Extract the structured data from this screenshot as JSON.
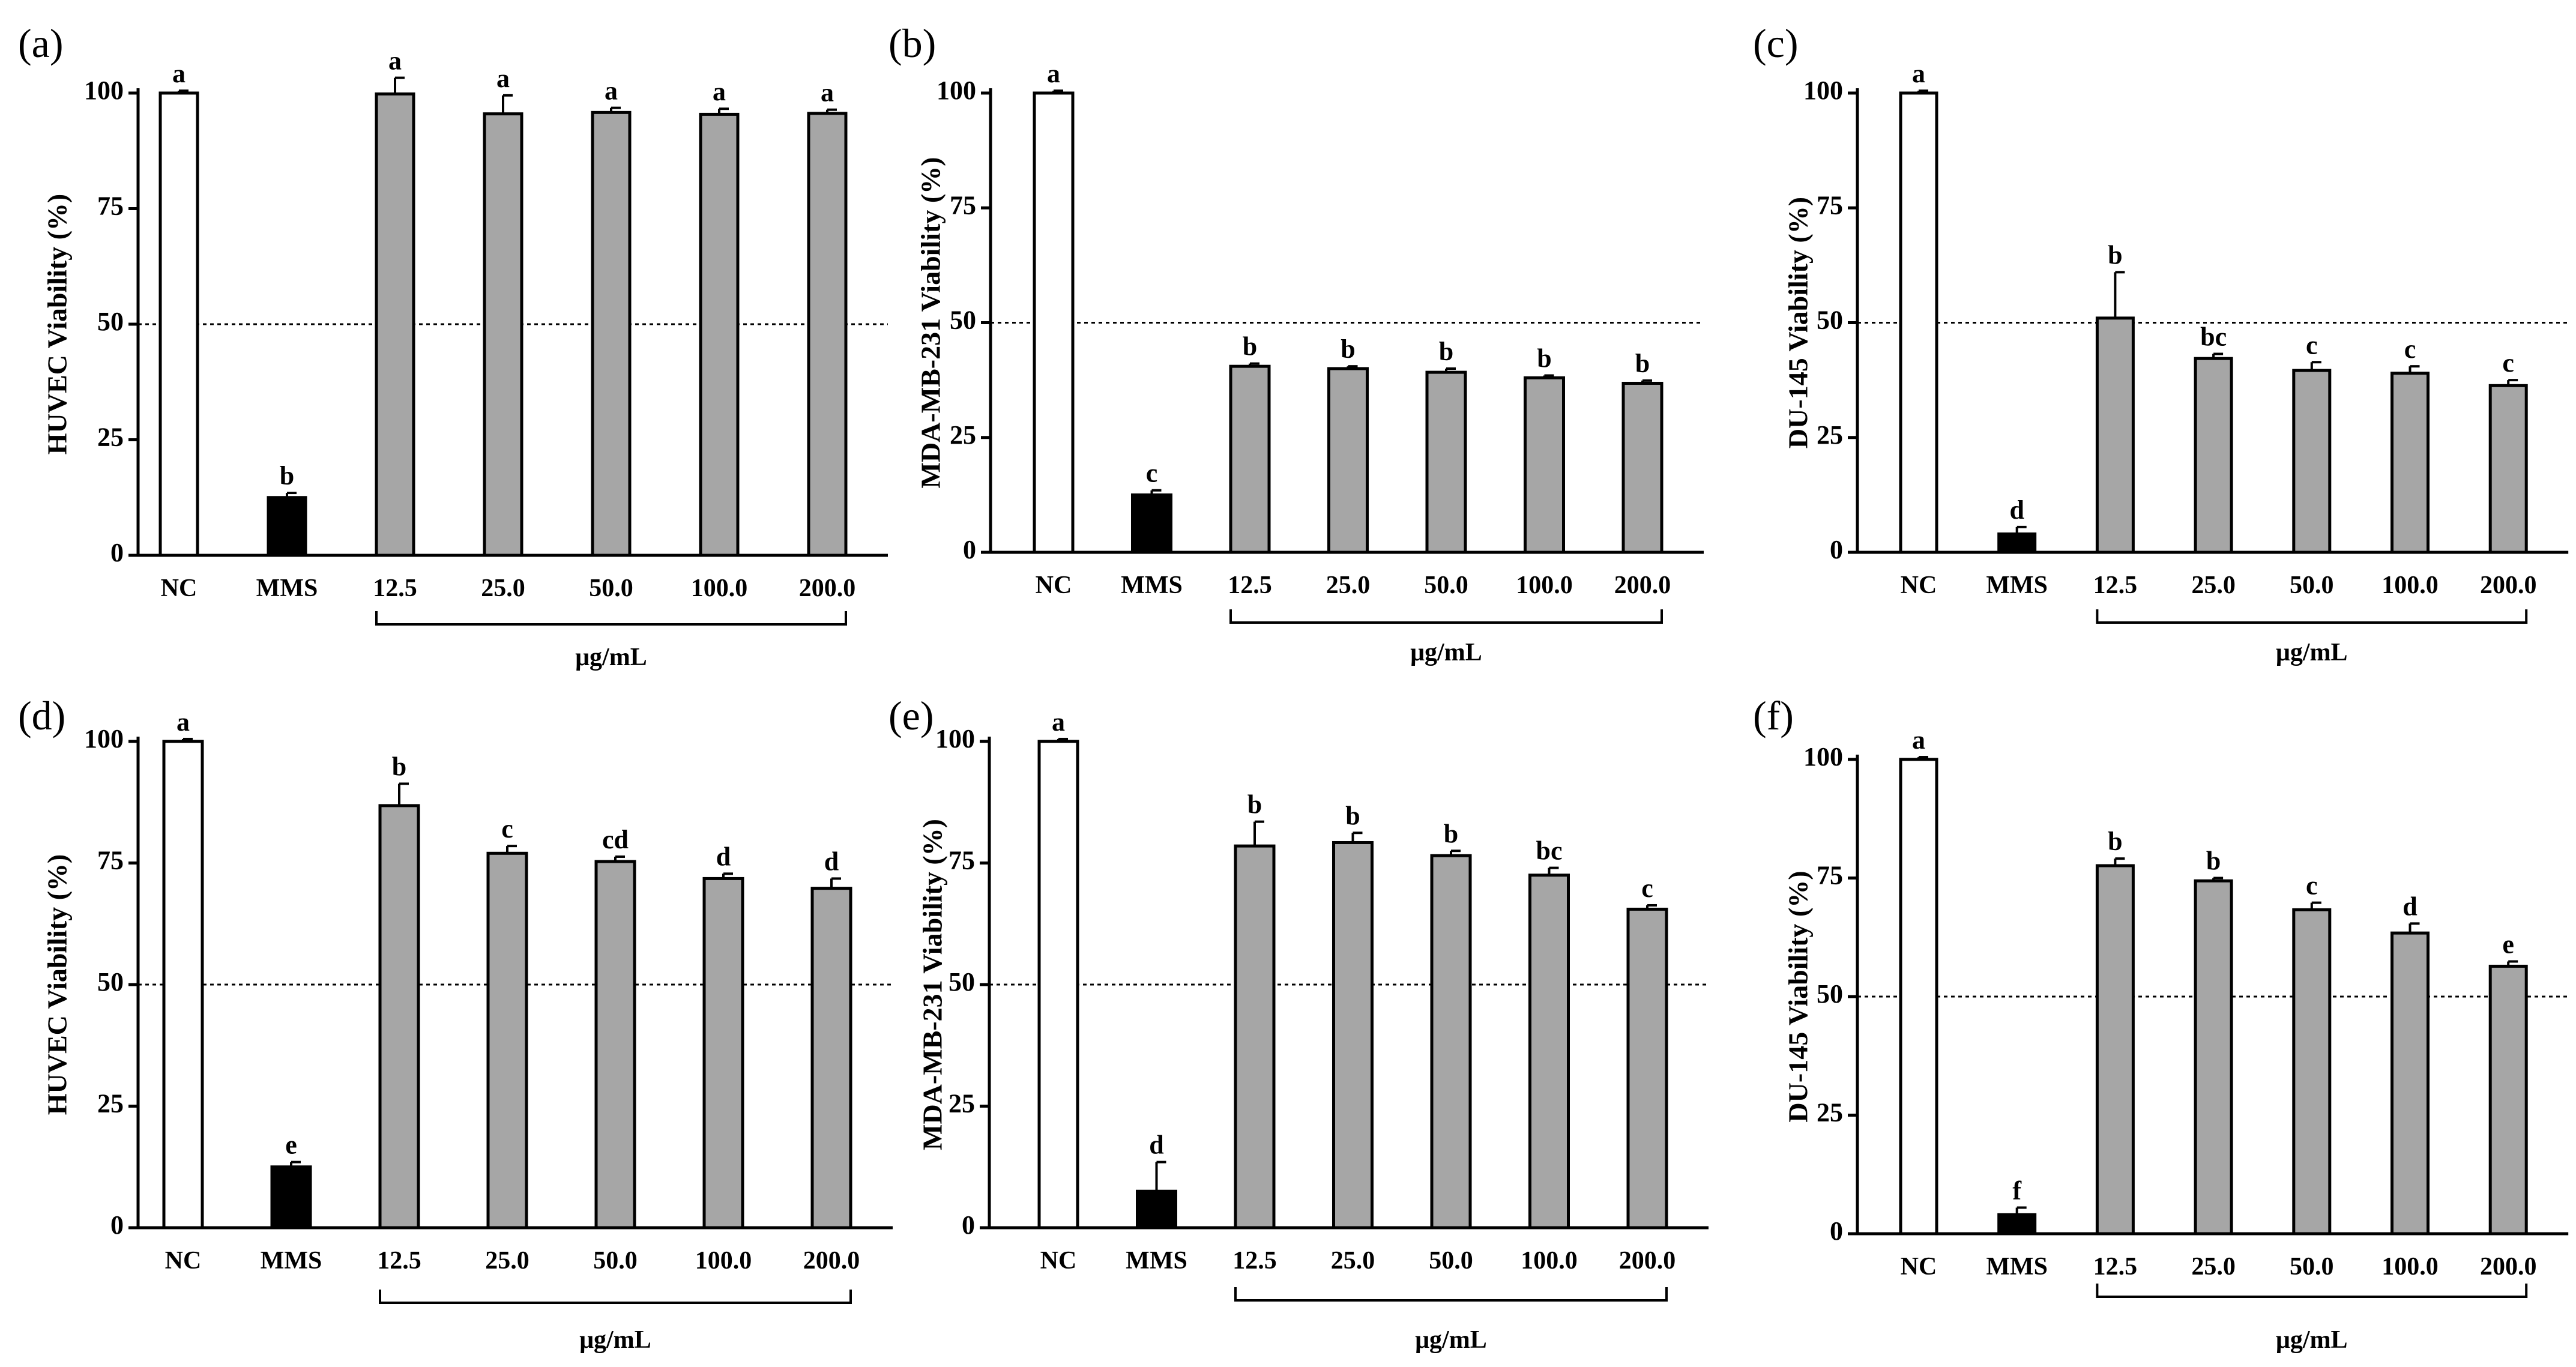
{
  "colors": {
    "NC": "#ffffff",
    "MMS": "#000000",
    "treatment": "#a6a6a6",
    "axis": "#000000"
  },
  "chart_data": [
    {
      "panel": "(a)",
      "type": "bar",
      "ylabel": "HUVEC Viability (%)",
      "categories": [
        "NC",
        "MMS",
        "12.5",
        "25.0",
        "50.0",
        "100.0",
        "200.0"
      ],
      "values": [
        100,
        12.5,
        99.8,
        95.5,
        95.8,
        95.4,
        95.6
      ],
      "errors": [
        0.5,
        1.0,
        3.5,
        4.0,
        1.0,
        1.2,
        0.8
      ],
      "significance": [
        "a",
        "b",
        "a",
        "a",
        "a",
        "a",
        "a"
      ],
      "bar_fill": [
        "NC",
        "MMS",
        "treatment",
        "treatment",
        "treatment",
        "treatment",
        "treatment"
      ],
      "group_label": "μg/mL",
      "ylim": [
        0,
        100
      ],
      "yticks": [
        0,
        25,
        50,
        75,
        100
      ],
      "reference_line": 50
    },
    {
      "panel": "(b)",
      "type": "bar",
      "ylabel": "MDA-MB-231 Viability (%)",
      "categories": [
        "NC",
        "MMS",
        "12.5",
        "25.0",
        "50.0",
        "100.0",
        "200.0"
      ],
      "values": [
        100,
        12.5,
        40.5,
        40.0,
        39.2,
        38.0,
        36.8
      ],
      "errors": [
        0.5,
        1.0,
        0.6,
        0.5,
        0.8,
        0.5,
        0.6
      ],
      "significance": [
        "a",
        "c",
        "b",
        "b",
        "b",
        "b",
        "b"
      ],
      "bar_fill": [
        "NC",
        "MMS",
        "treatment",
        "treatment",
        "treatment",
        "treatment",
        "treatment"
      ],
      "group_label": "μg/mL",
      "ylim": [
        0,
        100
      ],
      "yticks": [
        0,
        25,
        50,
        75,
        100
      ],
      "reference_line": 50
    },
    {
      "panel": "(c)",
      "type": "bar",
      "ylabel": "DU-145 Viability (%)",
      "categories": [
        "NC",
        "MMS",
        "12.5",
        "25.0",
        "50.0",
        "100.0",
        "200.0"
      ],
      "values": [
        100,
        4.0,
        51.0,
        42.2,
        39.6,
        39.0,
        36.3
      ],
      "errors": [
        0.5,
        1.5,
        10.0,
        1.0,
        1.8,
        1.5,
        1.2
      ],
      "significance": [
        "a",
        "d",
        "b",
        "bc",
        "c",
        "c",
        "c"
      ],
      "bar_fill": [
        "NC",
        "MMS",
        "treatment",
        "treatment",
        "treatment",
        "treatment",
        "treatment"
      ],
      "group_label": "μg/mL",
      "ylim": [
        0,
        100
      ],
      "yticks": [
        0,
        25,
        50,
        75,
        100
      ],
      "reference_line": 50
    },
    {
      "panel": "(d)",
      "type": "bar",
      "ylabel": "HUVEC Viability (%)",
      "categories": [
        "NC",
        "MMS",
        "12.5",
        "25.0",
        "50.0",
        "100.0",
        "200.0"
      ],
      "values": [
        100,
        12.5,
        86.8,
        77.0,
        75.3,
        71.8,
        69.8
      ],
      "errors": [
        0.5,
        1.0,
        4.5,
        1.5,
        1.0,
        1.0,
        2.0
      ],
      "significance": [
        "a",
        "e",
        "b",
        "c",
        "cd",
        "d",
        "d"
      ],
      "bar_fill": [
        "NC",
        "MMS",
        "treatment",
        "treatment",
        "treatment",
        "treatment",
        "treatment"
      ],
      "group_label": "μg/mL",
      "ylim": [
        0,
        100
      ],
      "yticks": [
        0,
        25,
        50,
        75,
        100
      ],
      "reference_line": 50
    },
    {
      "panel": "(e)",
      "type": "bar",
      "ylabel": "MDA-MB-231 Viability (%)",
      "categories": [
        "NC",
        "MMS",
        "12.5",
        "25.0",
        "50.0",
        "100.0",
        "200.0"
      ],
      "values": [
        100,
        7.5,
        78.5,
        79.2,
        76.5,
        72.5,
        65.5
      ],
      "errors": [
        0.5,
        6.0,
        5.0,
        2.0,
        1.0,
        1.5,
        0.8
      ],
      "significance": [
        "a",
        "d",
        "b",
        "b",
        "b",
        "bc",
        "c"
      ],
      "bar_fill": [
        "NC",
        "MMS",
        "treatment",
        "treatment",
        "treatment",
        "treatment",
        "treatment"
      ],
      "group_label": "μg/mL",
      "ylim": [
        0,
        100
      ],
      "yticks": [
        0,
        25,
        50,
        75,
        100
      ],
      "reference_line": 50
    },
    {
      "panel": "(f)",
      "type": "bar",
      "ylabel": "DU-145 Viability (%)",
      "categories": [
        "NC",
        "MMS",
        "12.5",
        "25.0",
        "50.0",
        "100.0",
        "200.0"
      ],
      "values": [
        100,
        4.0,
        77.6,
        74.4,
        68.3,
        63.4,
        56.4
      ],
      "errors": [
        0.5,
        1.5,
        1.5,
        0.6,
        1.5,
        2.0,
        1.0
      ],
      "significance": [
        "a",
        "f",
        "b",
        "b",
        "c",
        "d",
        "e"
      ],
      "bar_fill": [
        "NC",
        "MMS",
        "treatment",
        "treatment",
        "treatment",
        "treatment",
        "treatment"
      ],
      "group_label": "μg/mL",
      "ylim": [
        0,
        100
      ],
      "yticks": [
        0,
        25,
        50,
        75,
        100
      ],
      "reference_line": 50
    }
  ]
}
